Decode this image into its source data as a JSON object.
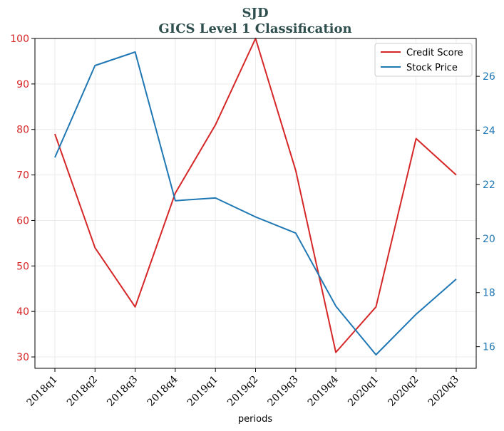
{
  "chart_data": {
    "type": "line",
    "title": "SJD",
    "subtitle": "GICS Level 1 Classification",
    "xlabel": "periods",
    "categories": [
      "2018q1",
      "2018q2",
      "2018q3",
      "2018q4",
      "2019q1",
      "2019q2",
      "2019q3",
      "2019q4",
      "2020q1",
      "2020q2",
      "2020q3"
    ],
    "series": [
      {
        "name": "Credit Score",
        "axis": "left",
        "color": "#d62728",
        "values": [
          79,
          54,
          41,
          66,
          81,
          100,
          71,
          31,
          41,
          78,
          70
        ]
      },
      {
        "name": "Stock Price",
        "axis": "right",
        "color": "#1f77b4",
        "values": [
          23.0,
          26.4,
          26.9,
          21.4,
          21.5,
          20.8,
          20.2,
          17.5,
          15.7,
          17.2,
          18.5
        ]
      }
    ],
    "y_left": {
      "range": [
        27.5,
        100
      ],
      "ticks": [
        30,
        40,
        50,
        60,
        70,
        80,
        90,
        100
      ],
      "color": "#d62728"
    },
    "y_right": {
      "range": [
        15.2,
        27.4
      ],
      "ticks": [
        16,
        18,
        20,
        22,
        24,
        26
      ],
      "color": "#1f77b4"
    },
    "grid": true,
    "legend_position": "top-right"
  }
}
